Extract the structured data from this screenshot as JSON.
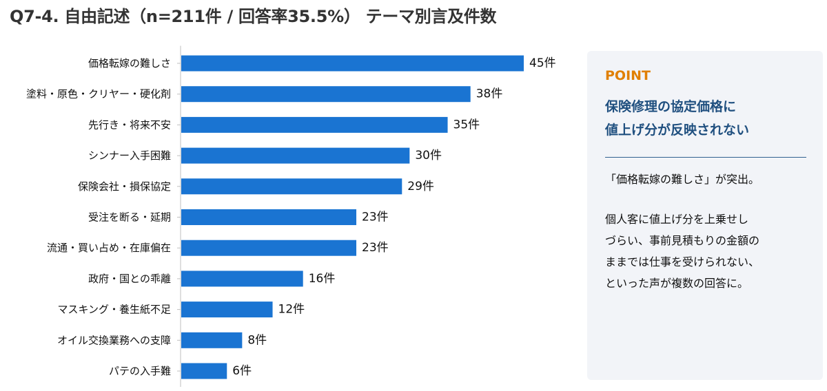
{
  "header": {
    "title": "Q7-4. 自由記述（n=211件 / 回答率35.5%） テーマ別言及件数"
  },
  "colors": {
    "bar": "#1a74d2",
    "axis": "#bfbfbf",
    "accent": "#e07f00",
    "headline": "#1f4f7f",
    "panel_bg": "#f2f4f8"
  },
  "chart_data": {
    "type": "bar",
    "orientation": "horizontal",
    "categories": [
      "価格転嫁の難しさ",
      "塗料・原色・クリヤー・硬化剤",
      "先行き・将来不安",
      "シンナー入手困難",
      "保険会社・損保協定",
      "受注を断る・延期",
      "流通・買い占め・在庫偏在",
      "政府・国との乖離",
      "マスキング・養生紙不足",
      "オイル交換業務への支障",
      "パテの入手難"
    ],
    "values": [
      45,
      38,
      35,
      30,
      29,
      23,
      23,
      16,
      12,
      8,
      6
    ],
    "value_labels": [
      "45件",
      "38件",
      "35件",
      "30件",
      "29件",
      "23件",
      "23件",
      "16件",
      "12件",
      "8件",
      "6件"
    ],
    "xlim": [
      0,
      45
    ],
    "grid": false,
    "legend": "none"
  },
  "point_panel": {
    "tag": "POINT",
    "headline_lines": [
      "保険修理の協定価格に",
      "値上げ分が反映されない"
    ],
    "lead": "「価格転嫁の難しさ」が突出。",
    "body_lines": [
      "個人客に値上げ分を上乗せし",
      "づらい、事前見積もりの金額の",
      "ままでは仕事を受けられない、",
      "といった声が複数の回答に。"
    ]
  }
}
